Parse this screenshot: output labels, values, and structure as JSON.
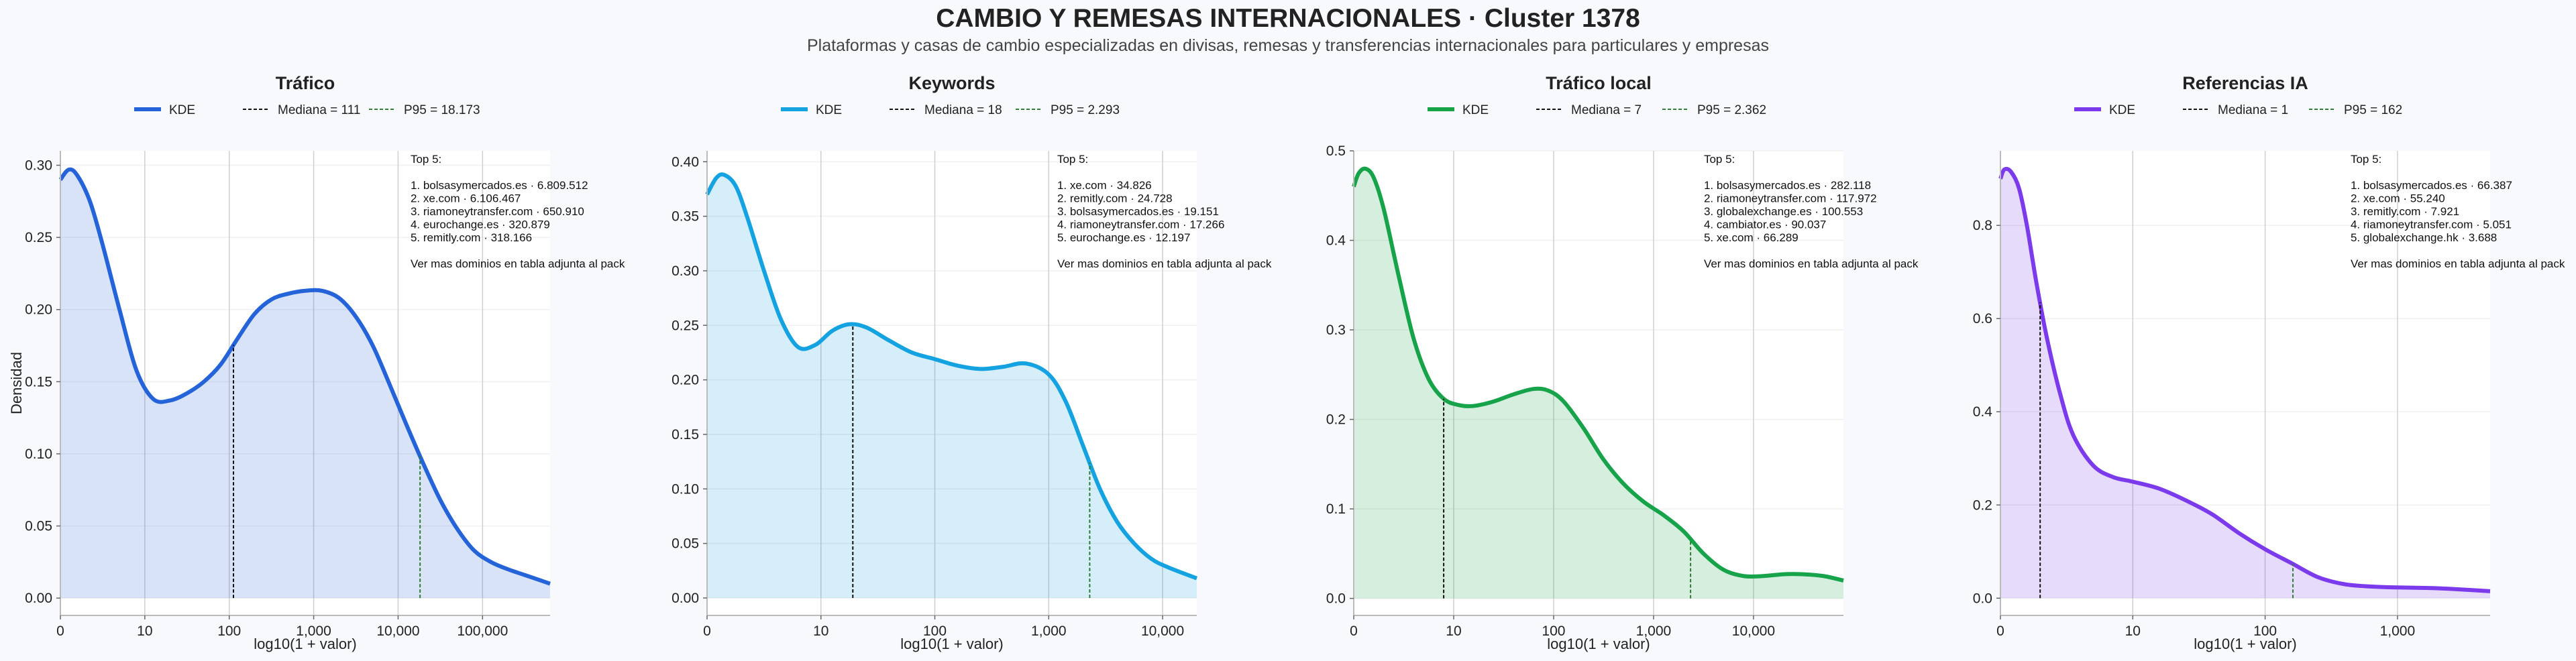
{
  "title": "CAMBIO Y REMESAS INTERNACIONALES · Cluster 1378",
  "subtitle": "Plataformas y casas de cambio especializadas en divisas, remesas y transferencias internacionales para particulares y empresas",
  "colors": {
    "trafico": "#2563d9",
    "keywords": "#14a3e0",
    "trafico_local": "#16a34a",
    "referencias_ia": "#7c3aed",
    "p95": "#2e7d32",
    "mediana": "#111111"
  },
  "legend_labels": {
    "kde": "KDE"
  },
  "chart_data": [
    {
      "type": "area",
      "title": "Tráfico",
      "xlabel": "log10(1 + valor)",
      "ylabel": "Densidad",
      "legend": [
        "KDE",
        "Mediana = 111",
        "P95 = 18.173"
      ],
      "xlim": [
        0,
        5.8
      ],
      "ylim": [
        -0.012,
        0.31
      ],
      "xticks": [
        {
          "v": 0,
          "l": "0"
        },
        {
          "v": 1,
          "l": "10"
        },
        {
          "v": 2,
          "l": "100"
        },
        {
          "v": 3,
          "l": "1,000"
        },
        {
          "v": 4,
          "l": "10,000"
        },
        {
          "v": 5,
          "l": "100,000"
        }
      ],
      "yticks": [
        {
          "v": 0,
          "l": "0.00"
        },
        {
          "v": 0.05,
          "l": "0.05"
        },
        {
          "v": 0.1,
          "l": "0.10"
        },
        {
          "v": 0.15,
          "l": "0.15"
        },
        {
          "v": 0.2,
          "l": "0.20"
        },
        {
          "v": 0.25,
          "l": "0.25"
        },
        {
          "v": 0.3,
          "l": "0.30"
        }
      ],
      "median": 2.05,
      "p95": 4.26,
      "series": [
        {
          "x": [
            0,
            0.1,
            0.2,
            0.35,
            0.5,
            0.7,
            0.9,
            1.1,
            1.3,
            1.5,
            1.7,
            1.9,
            2.1,
            2.3,
            2.5,
            2.7,
            2.9,
            3.1,
            3.3,
            3.5,
            3.7,
            3.9,
            4.1,
            4.3,
            4.5,
            4.7,
            4.9,
            5.1,
            5.3,
            5.5,
            5.8
          ],
          "y": [
            0.29,
            0.297,
            0.293,
            0.275,
            0.245,
            0.2,
            0.158,
            0.138,
            0.137,
            0.142,
            0.15,
            0.162,
            0.18,
            0.197,
            0.207,
            0.211,
            0.213,
            0.213,
            0.208,
            0.195,
            0.175,
            0.148,
            0.12,
            0.093,
            0.068,
            0.048,
            0.033,
            0.025,
            0.02,
            0.016,
            0.01
          ]
        }
      ],
      "top5": [
        "Top 5:",
        "",
        "1. bolsasymercados.es · 6.809.512",
        "2. xe.com · 6.106.467",
        "3. riamoneytransfer.com · 650.910",
        "4. eurochange.es · 320.879",
        "5. remitly.com · 318.166",
        "",
        "Ver mas dominios en tabla adjunta al pack"
      ]
    },
    {
      "type": "area",
      "title": "Keywords",
      "xlabel": "log10(1 + valor)",
      "ylabel": "",
      "legend": [
        "KDE",
        "Mediana = 18",
        "P95 = 2.293"
      ],
      "xlim": [
        0,
        4.3
      ],
      "ylim": [
        -0.016,
        0.41
      ],
      "xticks": [
        {
          "v": 0,
          "l": "0"
        },
        {
          "v": 1,
          "l": "10"
        },
        {
          "v": 2,
          "l": "100"
        },
        {
          "v": 3,
          "l": "1,000"
        },
        {
          "v": 4,
          "l": "10,000"
        }
      ],
      "yticks": [
        {
          "v": 0,
          "l": "0.00"
        },
        {
          "v": 0.05,
          "l": "0.05"
        },
        {
          "v": 0.1,
          "l": "0.10"
        },
        {
          "v": 0.15,
          "l": "0.15"
        },
        {
          "v": 0.2,
          "l": "0.20"
        },
        {
          "v": 0.25,
          "l": "0.25"
        },
        {
          "v": 0.3,
          "l": "0.30"
        },
        {
          "v": 0.35,
          "l": "0.35"
        },
        {
          "v": 0.4,
          "l": "0.40"
        }
      ],
      "median": 1.28,
      "p95": 3.36,
      "series": [
        {
          "x": [
            0,
            0.08,
            0.15,
            0.25,
            0.35,
            0.5,
            0.65,
            0.8,
            0.95,
            1.1,
            1.25,
            1.4,
            1.6,
            1.8,
            2.0,
            2.2,
            2.4,
            2.6,
            2.8,
            3.0,
            3.15,
            3.3,
            3.45,
            3.6,
            3.75,
            3.9,
            4.05,
            4.3
          ],
          "y": [
            0.37,
            0.385,
            0.388,
            0.378,
            0.35,
            0.3,
            0.255,
            0.23,
            0.232,
            0.245,
            0.251,
            0.248,
            0.236,
            0.225,
            0.219,
            0.213,
            0.21,
            0.212,
            0.215,
            0.205,
            0.18,
            0.14,
            0.1,
            0.07,
            0.05,
            0.036,
            0.028,
            0.018
          ]
        }
      ],
      "top5": [
        "Top 5:",
        "",
        "1. xe.com · 34.826",
        "2. remitly.com · 24.728",
        "3. bolsasymercados.es · 19.151",
        "4. riamoneytransfer.com · 17.266",
        "5. eurochange.es · 12.197",
        "",
        "Ver mas dominios en tabla adjunta al pack"
      ]
    },
    {
      "type": "area",
      "title": "Tráfico local",
      "xlabel": "log10(1 + valor)",
      "ylabel": "",
      "legend": [
        "KDE",
        "Mediana = 7",
        "P95 = 2.362"
      ],
      "xlim": [
        0,
        4.9
      ],
      "ylim": [
        -0.019,
        0.5
      ],
      "xticks": [
        {
          "v": 0,
          "l": "0"
        },
        {
          "v": 1,
          "l": "10"
        },
        {
          "v": 2,
          "l": "100"
        },
        {
          "v": 3,
          "l": "1,000"
        },
        {
          "v": 4,
          "l": "10,000"
        }
      ],
      "yticks": [
        {
          "v": 0,
          "l": "0.0"
        },
        {
          "v": 0.1,
          "l": "0.1"
        },
        {
          "v": 0.2,
          "l": "0.2"
        },
        {
          "v": 0.3,
          "l": "0.3"
        },
        {
          "v": 0.4,
          "l": "0.4"
        },
        {
          "v": 0.5,
          "l": "0.5"
        }
      ],
      "median": 0.9,
      "p95": 3.37,
      "series": [
        {
          "x": [
            0,
            0.05,
            0.12,
            0.2,
            0.3,
            0.45,
            0.6,
            0.75,
            0.9,
            1.05,
            1.2,
            1.4,
            1.6,
            1.8,
            1.95,
            2.1,
            2.3,
            2.5,
            2.7,
            2.9,
            3.1,
            3.3,
            3.5,
            3.7,
            3.9,
            4.1,
            4.3,
            4.5,
            4.7,
            4.9
          ],
          "y": [
            0.46,
            0.475,
            0.48,
            0.47,
            0.435,
            0.36,
            0.29,
            0.245,
            0.223,
            0.216,
            0.215,
            0.22,
            0.228,
            0.234,
            0.232,
            0.22,
            0.19,
            0.155,
            0.128,
            0.108,
            0.093,
            0.075,
            0.05,
            0.032,
            0.025,
            0.025,
            0.027,
            0.027,
            0.025,
            0.02
          ]
        }
      ],
      "top5": [
        "Top 5:",
        "",
        "1. bolsasymercados.es · 282.118",
        "2. riamoneytransfer.com · 117.972",
        "3. globalexchange.es · 100.553",
        "4. cambiator.es · 90.037",
        "5. xe.com · 66.289",
        "",
        "Ver mas dominios en tabla adjunta al pack"
      ]
    },
    {
      "type": "area",
      "title": "Referencias IA",
      "xlabel": "log10(1 + valor)",
      "ylabel": "",
      "legend": [
        "KDE",
        "Mediana = 1",
        "P95 = 162"
      ],
      "xlim": [
        0,
        3.7
      ],
      "ylim": [
        -0.037,
        0.96
      ],
      "xticks": [
        {
          "v": 0,
          "l": "0"
        },
        {
          "v": 1,
          "l": "10"
        },
        {
          "v": 2,
          "l": "100"
        },
        {
          "v": 3,
          "l": "1,000"
        }
      ],
      "yticks": [
        {
          "v": 0,
          "l": "0.0"
        },
        {
          "v": 0.2,
          "l": "0.2"
        },
        {
          "v": 0.4,
          "l": "0.4"
        },
        {
          "v": 0.6,
          "l": "0.6"
        },
        {
          "v": 0.8,
          "l": "0.8"
        }
      ],
      "median": 0.3,
      "p95": 2.21,
      "series": [
        {
          "x": [
            0,
            0.03,
            0.08,
            0.14,
            0.2,
            0.27,
            0.35,
            0.45,
            0.55,
            0.7,
            0.85,
            1.0,
            1.2,
            1.4,
            1.6,
            1.8,
            2.0,
            2.2,
            2.4,
            2.6,
            2.8,
            3.0,
            3.2,
            3.4,
            3.7
          ],
          "y": [
            0.9,
            0.92,
            0.915,
            0.88,
            0.8,
            0.68,
            0.56,
            0.44,
            0.35,
            0.285,
            0.26,
            0.25,
            0.235,
            0.21,
            0.18,
            0.14,
            0.105,
            0.075,
            0.045,
            0.03,
            0.025,
            0.023,
            0.022,
            0.02,
            0.015
          ]
        }
      ],
      "top5": [
        "Top 5:",
        "",
        "1. bolsasymercados.es · 66.387",
        "2. xe.com · 55.240",
        "3. remitly.com · 7.921",
        "4. riamoneytransfer.com · 5.051",
        "5. globalexchange.hk · 3.688",
        "",
        "Ver mas dominios en tabla adjunta al pack"
      ]
    }
  ]
}
